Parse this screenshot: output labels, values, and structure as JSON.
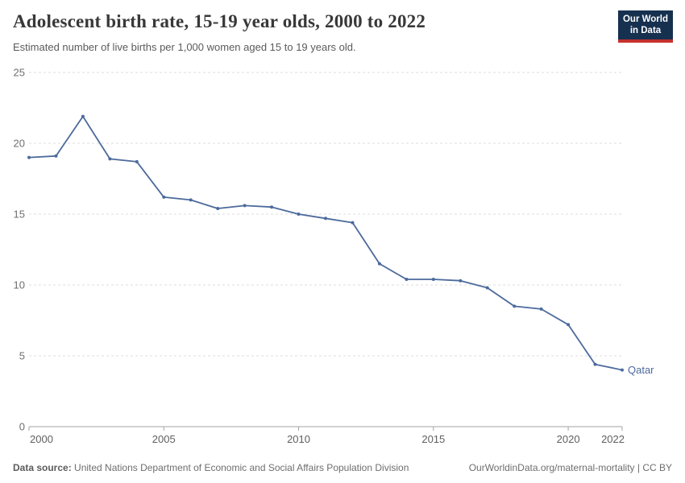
{
  "header": {
    "title": "Adolescent birth rate, 15-19 year olds, 2000 to 2022",
    "subtitle": "Estimated number of live births per 1,000 women aged 15 to 19 years old.",
    "logo": {
      "line1": "Our World",
      "line2": "in Data",
      "bg_color": "#16304f",
      "accent_color": "#c5312d"
    }
  },
  "chart_data": {
    "type": "line",
    "title": "Adolescent birth rate, 15-19 year olds, 2000 to 2022",
    "xlabel": "",
    "ylabel": "",
    "x": [
      2000,
      2001,
      2002,
      2003,
      2004,
      2005,
      2006,
      2007,
      2008,
      2009,
      2010,
      2011,
      2012,
      2013,
      2014,
      2015,
      2016,
      2017,
      2018,
      2019,
      2020,
      2021,
      2022
    ],
    "series": [
      {
        "name": "Qatar",
        "color": "#4C6A9C",
        "values": [
          19.0,
          19.1,
          21.9,
          18.9,
          18.7,
          16.2,
          16.0,
          15.4,
          15.6,
          15.5,
          15.0,
          14.7,
          14.4,
          11.5,
          10.4,
          10.4,
          10.3,
          9.8,
          8.5,
          8.3,
          7.2,
          4.4,
          4.0
        ]
      }
    ],
    "end_label": "Qatar",
    "xlim": [
      2000,
      2022
    ],
    "ylim": [
      0,
      25
    ],
    "x_ticks": [
      2000,
      2005,
      2010,
      2015,
      2020,
      2022
    ],
    "y_ticks": [
      0,
      5,
      10,
      15,
      20,
      25
    ],
    "grid": "horizontal-dashed",
    "legend_position": "end-of-line",
    "style": {
      "grid_color": "#dcdcdc",
      "axis_color": "#a3a3a3",
      "y_tick_label_color": "#6e6e6e",
      "x_tick_label_color": "#5f5f5f",
      "marker_radius": 2,
      "line_width": 1.8
    }
  },
  "footer": {
    "source_label": "Data source:",
    "source_text": " United Nations Department of Economic and Social Affairs Population Division",
    "attribution": "OurWorldinData.org/maternal-mortality | CC BY"
  }
}
